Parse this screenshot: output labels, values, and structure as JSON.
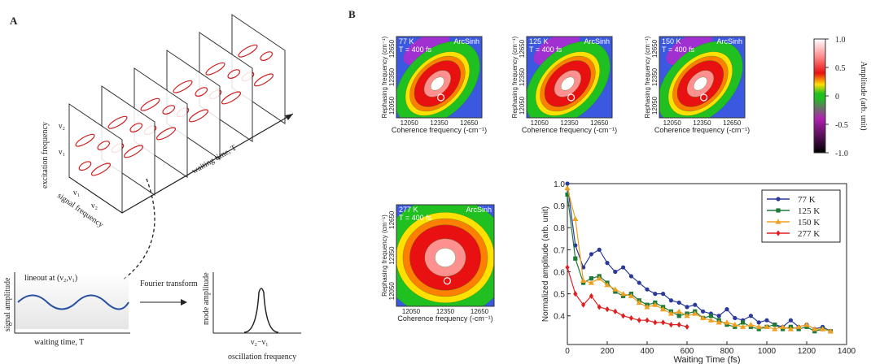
{
  "panel_a": {
    "label": "A",
    "excitation_axis": "excitation frequency",
    "signal_axis": "signal frequency",
    "waiting_axis": "waiting time, T",
    "nu1": "ν₁",
    "nu2": "ν₂",
    "lineout": "lineout at (ν₂,ν₁)",
    "signal_amplitude": "signal amplitude",
    "lineout_xlabel": "waiting time, T",
    "transform": "Fourier transform",
    "mode_amplitude": "mode amplitude",
    "peak_label": "ν₂−ν₁",
    "spectrum_xlabel": "oscillation frequency"
  },
  "panel_b": {
    "label": "B",
    "heatmap_axes": {
      "xlabel": "Coherence frequency (-cm⁻¹)",
      "ylabel": "Rephasing frequency (cm⁻¹)",
      "xticks": [
        12050,
        12350,
        12650
      ],
      "yticks": [
        12050,
        12350,
        12650
      ]
    },
    "heatmaps": [
      {
        "temperature": "77 K",
        "waiting_time": "T = 400 fs",
        "scale": "ArcSinh"
      },
      {
        "temperature": "125 K",
        "waiting_time": "T = 400 fs",
        "scale": "ArcSinh"
      },
      {
        "temperature": "150 K",
        "waiting_time": "T = 400 fs",
        "scale": "ArcSinh"
      },
      {
        "temperature": "277 K",
        "waiting_time": "T = 400 fs",
        "scale": "ArcSinh"
      }
    ],
    "colorbar": {
      "label": "Amplitude (arb. unit)",
      "ticks": [
        {
          "value": 1,
          "label": "1.0"
        },
        0.5,
        0,
        -0.5,
        {
          "value": -1,
          "label": "-1.0"
        }
      ]
    }
  },
  "chart_data": {
    "type": "line",
    "xlabel": "Waiting Time (fs)",
    "ylabel": "Normalized amplitude (arb. unit)",
    "x": [
      0,
      40,
      80,
      120,
      160,
      200,
      240,
      280,
      320,
      360,
      400,
      440,
      480,
      520,
      560,
      600,
      640,
      680,
      720,
      760,
      800,
      840,
      880,
      920,
      960,
      1000,
      1040,
      1080,
      1120,
      1160,
      1200,
      1240,
      1280,
      1320
    ],
    "series": [
      {
        "name": "77 K",
        "color": "#2b3a9a",
        "marker": "circle",
        "values": [
          1.0,
          0.72,
          0.62,
          0.68,
          0.7,
          0.64,
          0.6,
          0.62,
          0.58,
          0.55,
          0.52,
          0.5,
          0.5,
          0.47,
          0.46,
          0.44,
          0.45,
          0.42,
          0.41,
          0.4,
          0.43,
          0.39,
          0.38,
          0.4,
          0.37,
          0.38,
          0.36,
          0.35,
          0.38,
          0.35,
          0.36,
          0.34,
          0.35,
          0.33
        ]
      },
      {
        "name": "125 K",
        "color": "#1f7a3a",
        "marker": "square",
        "values": [
          0.95,
          0.66,
          0.55,
          0.57,
          0.58,
          0.55,
          0.51,
          0.49,
          0.5,
          0.47,
          0.45,
          0.46,
          0.44,
          0.42,
          0.4,
          0.41,
          0.42,
          0.39,
          0.4,
          0.38,
          0.36,
          0.35,
          0.37,
          0.35,
          0.34,
          0.35,
          0.36,
          0.34,
          0.35,
          0.34,
          0.35,
          0.33,
          0.34,
          0.33
        ]
      },
      {
        "name": "150 K",
        "color": "#f0a020",
        "marker": "triangle",
        "values": [
          0.98,
          0.84,
          0.56,
          0.55,
          0.57,
          0.54,
          0.52,
          0.5,
          0.49,
          0.46,
          0.44,
          0.45,
          0.43,
          0.41,
          0.42,
          0.4,
          0.41,
          0.39,
          0.38,
          0.37,
          0.37,
          0.36,
          0.35,
          0.36,
          0.35,
          0.35,
          0.34,
          0.35,
          0.34,
          0.35,
          0.36,
          0.34,
          0.34,
          0.33
        ]
      },
      {
        "name": "277 K",
        "color": "#e02020",
        "marker": "diamond",
        "values": [
          0.62,
          0.5,
          0.45,
          0.49,
          0.44,
          0.43,
          0.42,
          0.4,
          0.39,
          0.38,
          0.38,
          0.37,
          0.37,
          0.36,
          0.36,
          0.35,
          null,
          null,
          null,
          null,
          null,
          null,
          null,
          null,
          null,
          null,
          null,
          null,
          null,
          null,
          null,
          null,
          null,
          null
        ]
      }
    ],
    "xlim": [
      0,
      1400
    ],
    "xticks": [
      0,
      200,
      400,
      600,
      800,
      1000,
      1200,
      1400
    ],
    "ylim": [
      0.27,
      1.0
    ],
    "yticks": [
      0.4,
      0.5,
      0.6,
      0.7,
      0.8,
      0.9,
      {
        "value": 1,
        "label": "1.0"
      }
    ],
    "legend": "upper right"
  }
}
